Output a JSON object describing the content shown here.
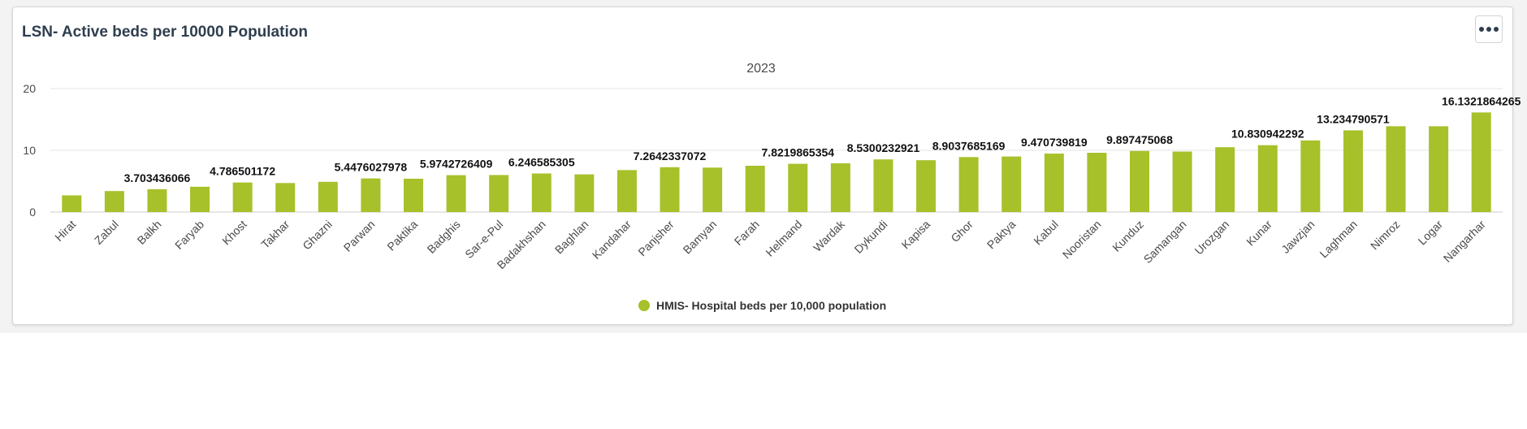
{
  "card": {
    "title": "LSN- Active beds per 10000 Population"
  },
  "colors": {
    "bar": "#a6c12a",
    "grid": "#e6e6e6",
    "axis": "#cccccc"
  },
  "chart_data": {
    "type": "bar",
    "title": "2023",
    "categories": [
      "Hirat",
      "Zabul",
      "Balkh",
      "Faryab",
      "Khost",
      "Takhar",
      "Ghazni",
      "Parwan",
      "Paktika",
      "Badghis",
      "Sar-e-Pul",
      "Badakhshan",
      "Baghlan",
      "Kandahar",
      "Panjsher",
      "Bamyan",
      "Farah",
      "Helmand",
      "Wardak",
      "Dykundi",
      "Kapisa",
      "Ghor",
      "Paktya",
      "Kabul",
      "Nooristan",
      "Kunduz",
      "Samangan",
      "Urozgan",
      "Kunar",
      "Jawzjan",
      "Laghman",
      "Nimroz",
      "Logar",
      "Nangarhar"
    ],
    "series": [
      {
        "name": "HMIS- Hospital beds per 10,000 population",
        "values": [
          2.7,
          3.4,
          3.703436066,
          4.1,
          4.786501172,
          4.7,
          4.9,
          5.4476027978,
          5.4,
          5.9742726409,
          6.0,
          6.246585305,
          6.1,
          6.8,
          7.2642337072,
          7.2,
          7.5,
          7.8219865354,
          7.9,
          8.5300232921,
          8.4,
          8.9037685169,
          9.0,
          9.470739819,
          9.6,
          9.897475068,
          9.8,
          10.5,
          10.830942292,
          11.6,
          13.234790571,
          13.9,
          13.9,
          16.1321864265
        ]
      }
    ],
    "data_labels": [
      "",
      "",
      "3.703436066",
      "",
      "4.786501172",
      "",
      "",
      "5.4476027978",
      "",
      "5.9742726409",
      "",
      "6.246585305",
      "",
      "",
      "7.2642337072",
      "",
      "",
      "7.8219865354",
      "",
      "8.5300232921",
      "",
      "8.9037685169",
      "",
      "9.470739819",
      "",
      "9.897475068",
      "",
      "",
      "10.830942292",
      "",
      "13.234790571",
      "",
      "",
      "16.1321864265"
    ],
    "yticks": [
      0,
      10,
      20
    ],
    "ylim": [
      0,
      20
    ],
    "xlabel": "",
    "ylabel": "",
    "grid": true,
    "legend_position": "bottom-center"
  }
}
